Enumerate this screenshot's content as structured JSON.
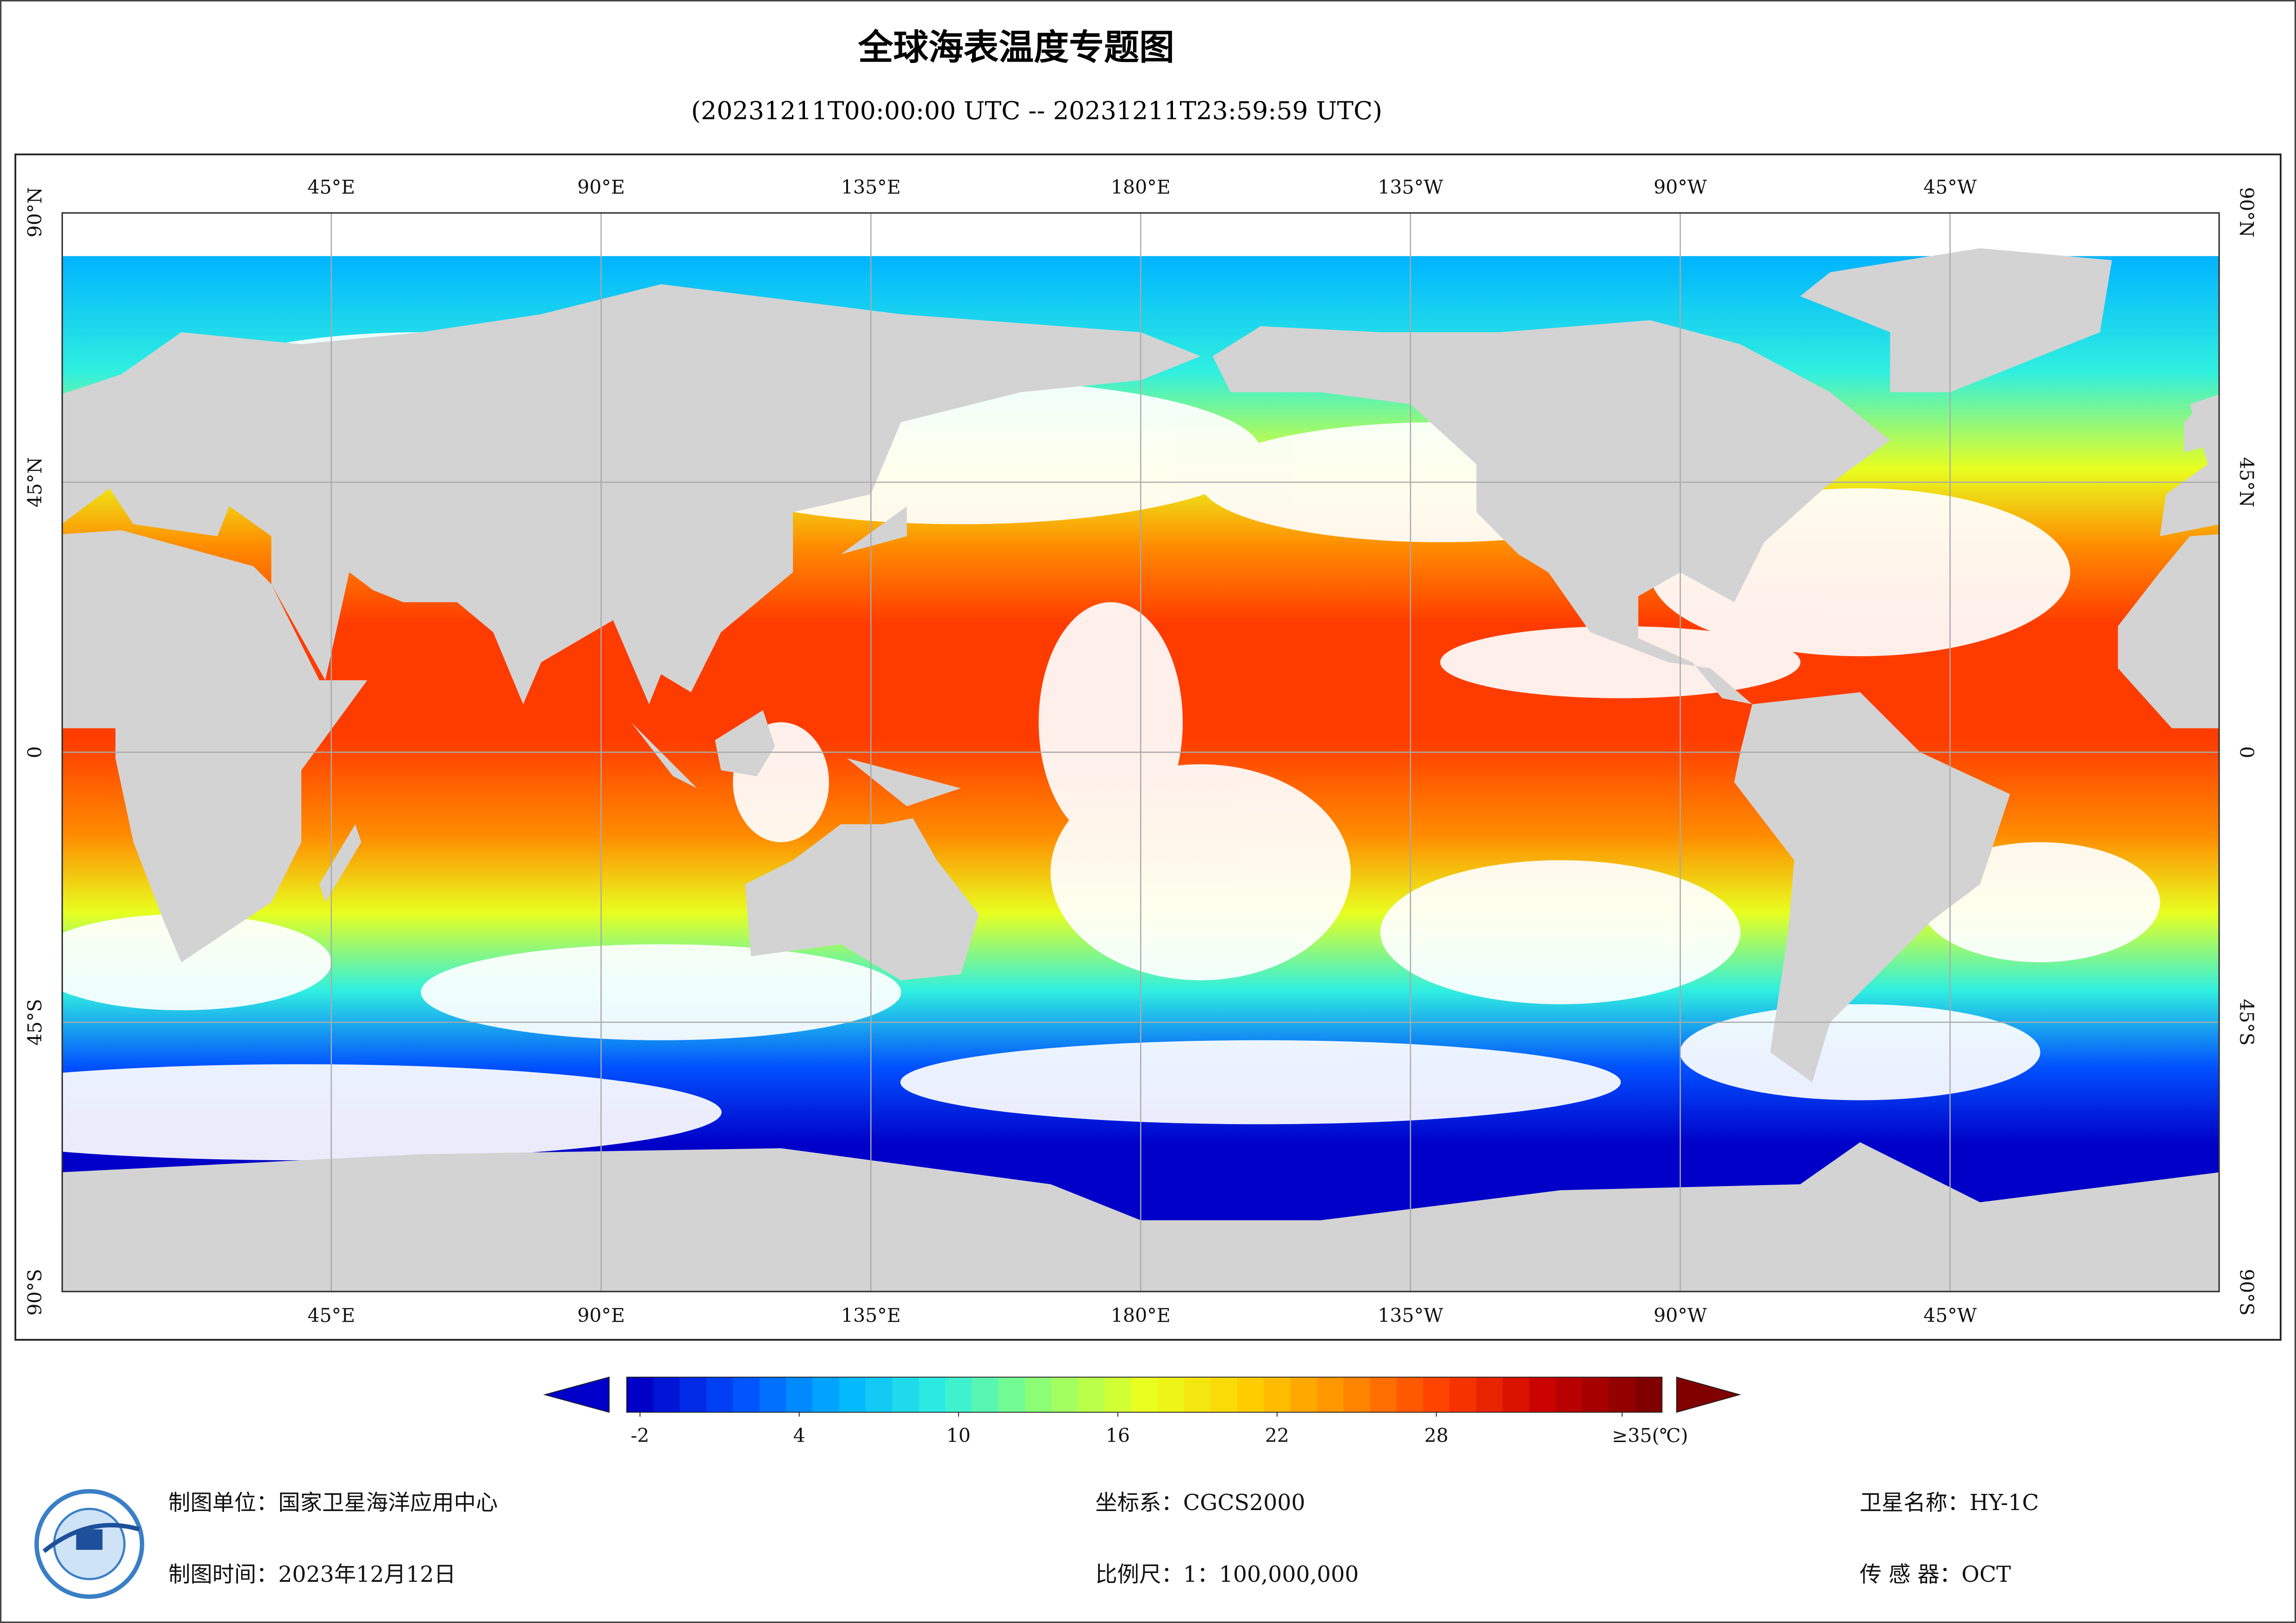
{
  "header": {
    "title": "全球海表温度专题图",
    "subtitle": "(20231211T00:00:00 UTC -- 20231211T23:59:59 UTC)"
  },
  "map": {
    "lon_labels": [
      "45°E",
      "90°E",
      "135°E",
      "180°E",
      "135°W",
      "90°W",
      "45°W"
    ],
    "lat_labels": [
      "90°N",
      "45°N",
      "0",
      "45°S",
      "90°S"
    ]
  },
  "colorbar": {
    "clim": [
      -2.5,
      36.5
    ],
    "ticks": [
      -2,
      4,
      10,
      16,
      22,
      28,
      {
        "value": 35,
        "label": "≥35(℃)"
      }
    ],
    "colors": [
      "#0000c8",
      "#0050ff",
      "#00b4ff",
      "#30f0e0",
      "#90ff70",
      "#e8ff20",
      "#ffd000",
      "#ff8c00",
      "#ff3c00",
      "#c80000",
      "#800000"
    ]
  },
  "footer": {
    "unit": "制图单位：国家卫星海洋应用中心",
    "date": "制图时间：2023年12月12日",
    "crs": "坐标系：CGCS2000",
    "scale": "比例尺：1：100,000,000",
    "satellite": "卫星名称：HY-1C",
    "sensor": "传 感 器：OCT"
  }
}
